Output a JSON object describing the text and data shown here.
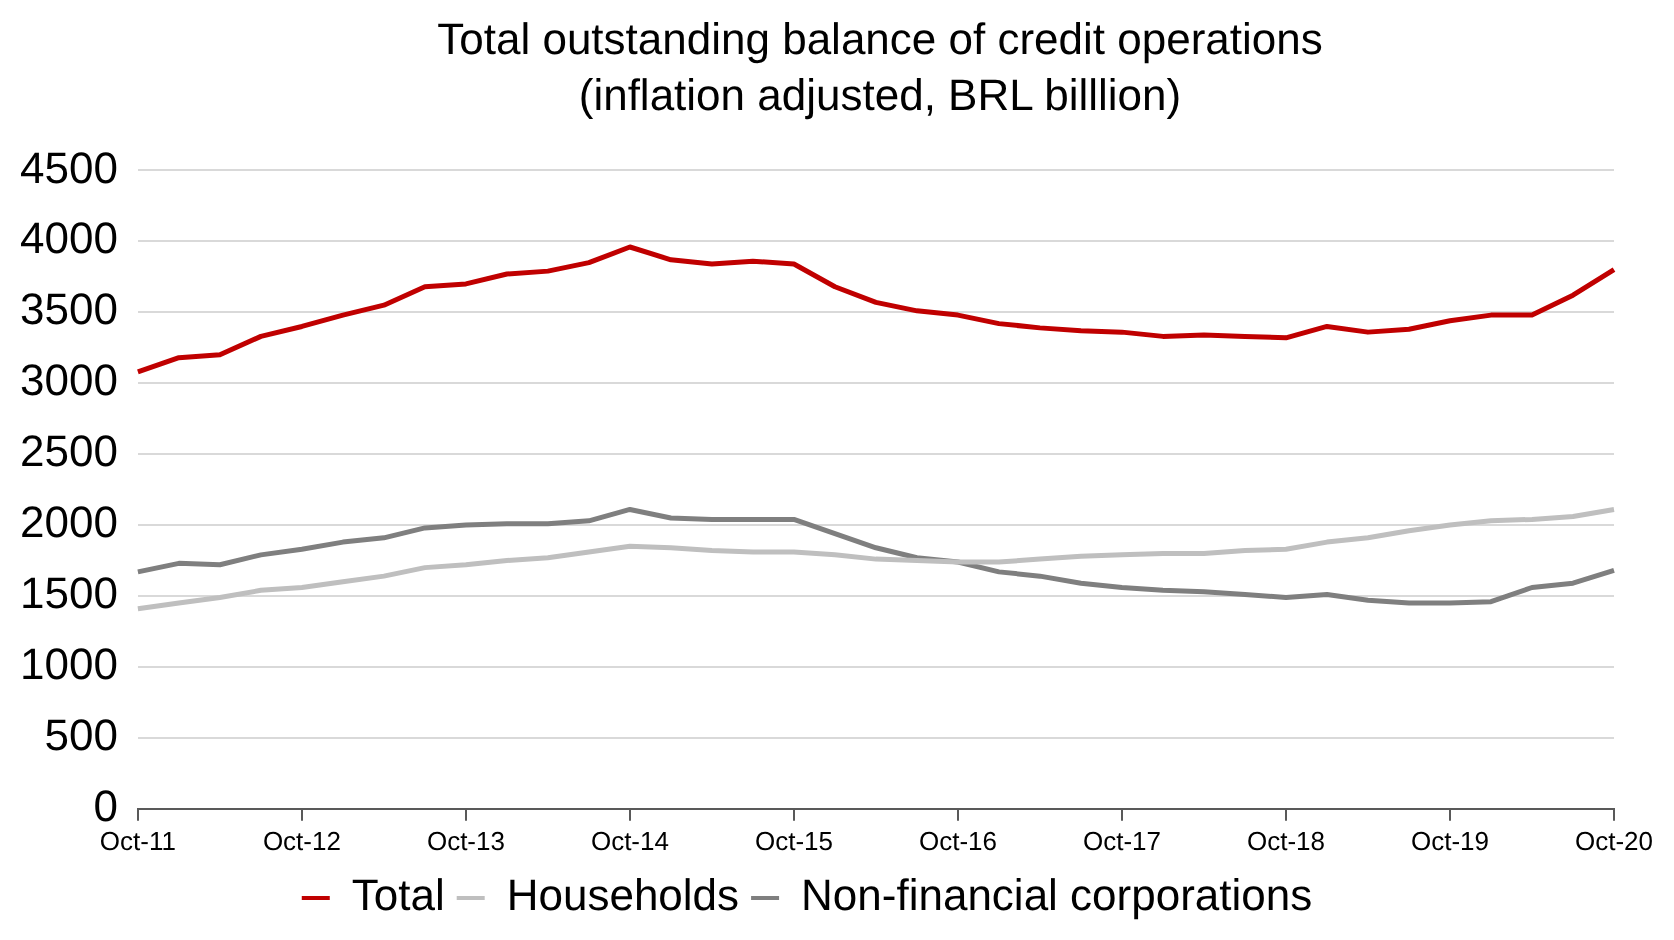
{
  "chart_data": {
    "type": "line",
    "title": "Total outstanding balance of credit operations (inflation adjusted, BRL billlion)",
    "categories": [
      "Oct-11",
      null,
      null,
      null,
      "Oct-12",
      null,
      null,
      null,
      "Oct-13",
      null,
      null,
      null,
      "Oct-14",
      null,
      null,
      null,
      "Oct-15",
      null,
      null,
      null,
      "Oct-16",
      null,
      null,
      null,
      "Oct-17",
      null,
      null,
      null,
      "Oct-18",
      null,
      null,
      null,
      "Oct-19",
      null,
      null,
      null,
      "Oct-20"
    ],
    "series": [
      {
        "name": "Total",
        "color": "#c00000",
        "values": [
          3080,
          3180,
          3200,
          3330,
          3400,
          3480,
          3550,
          3680,
          3700,
          3770,
          3790,
          3850,
          3960,
          3870,
          3840,
          3860,
          3840,
          3680,
          3570,
          3510,
          3480,
          3420,
          3390,
          3370,
          3360,
          3330,
          3340,
          3330,
          3320,
          3400,
          3360,
          3380,
          3440,
          3480,
          3480,
          3620,
          3800
        ]
      },
      {
        "name": "Households",
        "color": "#bfbfbf",
        "values": [
          1410,
          1450,
          1490,
          1540,
          1560,
          1600,
          1640,
          1700,
          1720,
          1750,
          1770,
          1810,
          1850,
          1840,
          1820,
          1810,
          1810,
          1790,
          1760,
          1750,
          1740,
          1740,
          1760,
          1780,
          1790,
          1800,
          1800,
          1820,
          1830,
          1880,
          1910,
          1960,
          2000,
          2030,
          2040,
          2060,
          2110
        ]
      },
      {
        "name": "Non-financial corporations",
        "color": "#7f7f7f",
        "values": [
          1670,
          1730,
          1720,
          1790,
          1830,
          1880,
          1910,
          1980,
          2000,
          2010,
          2010,
          2030,
          2110,
          2050,
          2040,
          2040,
          2040,
          1940,
          1840,
          1770,
          1740,
          1670,
          1640,
          1590,
          1560,
          1540,
          1530,
          1510,
          1490,
          1510,
          1470,
          1450,
          1450,
          1460,
          1560,
          1590,
          1680
        ]
      }
    ],
    "ylim": [
      0,
      4500
    ],
    "yticks": [
      0,
      500,
      1000,
      1500,
      2000,
      2500,
      3000,
      3500,
      4000,
      4500
    ],
    "grid": "y",
    "legend": "bottom",
    "marker": "none",
    "line_style": "solid"
  }
}
